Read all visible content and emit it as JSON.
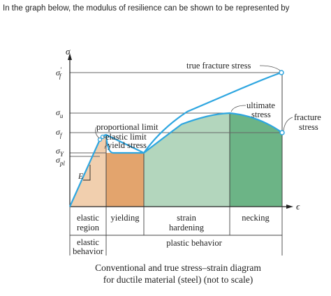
{
  "question": "In the graph below, the modulus of resilience can be shown to be represented by",
  "axes": {
    "y_label": "σ",
    "x_label": "ϵ",
    "y_ticks": [
      {
        "key": "sigma_f_prime",
        "base": "σ",
        "sub": "f",
        "prime": "′"
      },
      {
        "key": "sigma_u",
        "base": "σ",
        "sub": "u"
      },
      {
        "key": "sigma_f",
        "base": "σ",
        "sub": "f"
      },
      {
        "key": "sigma_Y",
        "base": "σ",
        "sub": "Y"
      },
      {
        "key": "sigma_pl",
        "base": "σ",
        "sub": "pl"
      }
    ]
  },
  "labels": {
    "true_fracture_stress": "true fracture stress",
    "ultimate_line1": "ultimate",
    "ultimate_line2": "stress",
    "fracture_line1": "fracture",
    "fracture_line2": "stress",
    "proportional_limit": "proportional limit",
    "elastic_limit": "elastic limit",
    "yield_stress": "yield stress",
    "modulus": "E"
  },
  "regions": {
    "elastic_region_line1": "elastic",
    "elastic_region_line2": "region",
    "yielding": "yielding",
    "strain_line1": "strain",
    "strain_line2": "hardening",
    "necking": "necking",
    "elastic_behavior_line1": "elastic",
    "elastic_behavior_line2": "behavior",
    "plastic_behavior": "plastic behavior"
  },
  "caption": {
    "line1": "Conventional and true stress–strain diagram",
    "line2": "for ductile material (steel) (not to scale)"
  },
  "colors": {
    "elastic": "#f1cfae",
    "yielding": "#e3a46d",
    "hardening": "#b3d6bd",
    "necking": "#6cb486",
    "curve": "#2ea6e0",
    "guide": "#666666"
  }
}
